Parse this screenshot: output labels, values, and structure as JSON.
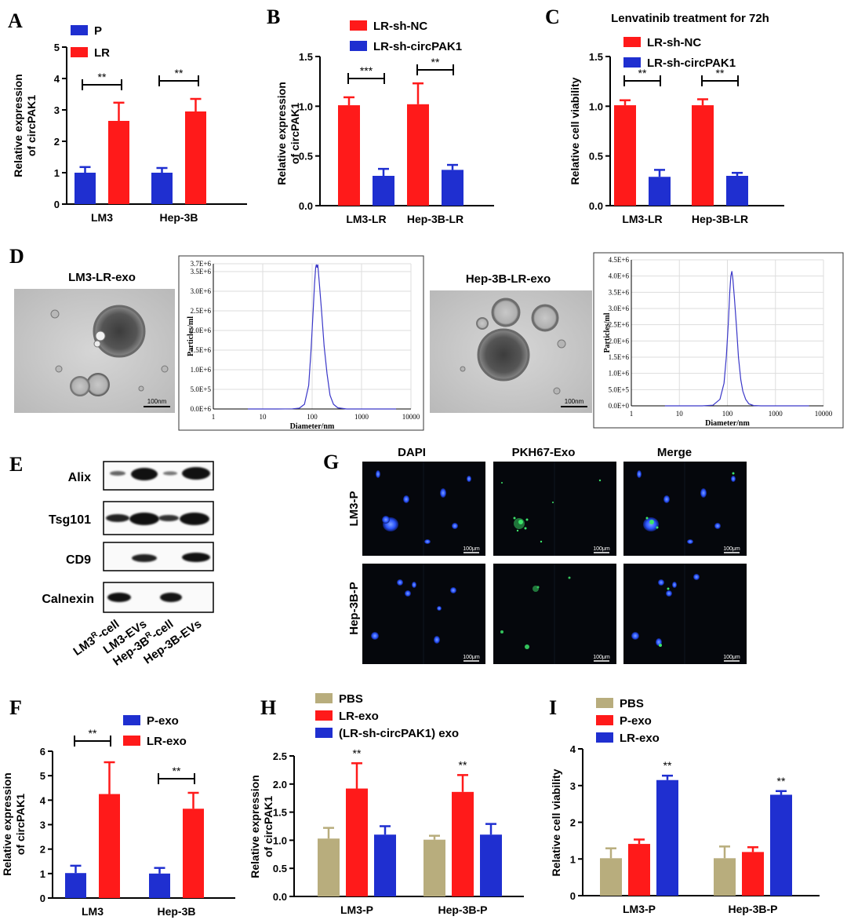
{
  "colors": {
    "p_blue": "#1f2fd0",
    "lr_red": "#ff1a1a",
    "pbs_khaki": "#b8ad7d",
    "nta_line": "#3a37c8",
    "axis": "#000000",
    "em_bg": "#c9c9c9",
    "fluor_bg": "#05070c",
    "dapi": "#2a55ff",
    "pkh": "#3ce36a"
  },
  "panels": {
    "A": "A",
    "B": "B",
    "C": "C",
    "D": "D",
    "E": "E",
    "F": "F",
    "G": "G",
    "H": "H",
    "I": "I"
  },
  "chart_data": [
    {
      "id": "A",
      "type": "bar",
      "ylabel": "Relative expression of circPAK1",
      "ylim": [
        0,
        5
      ],
      "yticks": [
        "0",
        "1",
        "2",
        "3",
        "4",
        "5"
      ],
      "categories": [
        "LM3",
        "Hep-3B"
      ],
      "series": [
        {
          "name": "P",
          "values": [
            1.0,
            1.0
          ],
          "errors": [
            0.18,
            0.15
          ]
        },
        {
          "name": "LR",
          "values": [
            2.65,
            2.95
          ],
          "errors": [
            0.58,
            0.4
          ]
        }
      ],
      "significance": [
        {
          "text": "**",
          "group": 0
        },
        {
          "text": "**",
          "group": 1
        }
      ]
    },
    {
      "id": "B",
      "type": "bar",
      "ylabel": "Relative expression of circPAK1",
      "ylim": [
        0,
        1.5
      ],
      "yticks": [
        "0.0",
        "0.5",
        "1.0",
        "1.5"
      ],
      "categories": [
        "LM3-LR",
        "Hep-3B-LR"
      ],
      "series": [
        {
          "name": "LR-sh-NC",
          "values": [
            1.01,
            1.02
          ],
          "errors": [
            0.08,
            0.21
          ]
        },
        {
          "name": "LR-sh-circPAK1",
          "values": [
            0.3,
            0.36
          ],
          "errors": [
            0.07,
            0.05
          ]
        }
      ],
      "significance": [
        {
          "text": "***",
          "group": 0
        },
        {
          "text": "**",
          "group": 1
        }
      ]
    },
    {
      "id": "C",
      "type": "bar",
      "title": "Lenvatinib treatment for 72h",
      "ylabel": "Relative cell viability",
      "ylim": [
        0,
        1.5
      ],
      "yticks": [
        "0.0",
        "0.5",
        "1.0",
        "1.5"
      ],
      "categories": [
        "LM3-LR",
        "Hep-3B-LR"
      ],
      "series": [
        {
          "name": "LR-sh-NC",
          "values": [
            1.01,
            1.01
          ],
          "errors": [
            0.05,
            0.06
          ]
        },
        {
          "name": "LR-sh-circPAK1",
          "values": [
            0.29,
            0.3
          ],
          "errors": [
            0.07,
            0.03
          ]
        }
      ],
      "significance": [
        {
          "text": "**",
          "group": 0
        },
        {
          "text": "**",
          "group": 1
        }
      ]
    },
    {
      "id": "D1",
      "type": "line",
      "xscale": "log",
      "xlim": [
        1,
        10000
      ],
      "xticks": [
        "1",
        "10",
        "100",
        "1000",
        "10000"
      ],
      "ylim": [
        0,
        3700000
      ],
      "yticks": [
        "0.0E+6",
        "5.0E+5",
        "1.0E+6",
        "1.5E+6",
        "2.0E+6",
        "2.5E+6",
        "3.0E+6",
        "3.5E+6",
        "3.7E+6"
      ],
      "xlabel": "Diameter/nm",
      "ylabel": "Particles/ml",
      "x": [
        5,
        20,
        40,
        55,
        70,
        85,
        95,
        105,
        112,
        118,
        122,
        126,
        130,
        140,
        155,
        175,
        200,
        230,
        270,
        330,
        500,
        1000,
        5000
      ],
      "y": [
        0,
        0,
        5000,
        20000,
        120000,
        600000,
        1500000,
        2500000,
        3200000,
        3600000,
        3680000,
        3600000,
        3680000,
        3200000,
        2500000,
        1600000,
        900000,
        350000,
        120000,
        30000,
        0,
        0,
        0
      ]
    },
    {
      "id": "D2",
      "type": "line",
      "xscale": "log",
      "xlim": [
        1,
        10000
      ],
      "xticks": [
        "1",
        "10",
        "100",
        "1000",
        "10000"
      ],
      "ylim": [
        0,
        4500000
      ],
      "yticks": [
        "0.0E+0",
        "5.0E+5",
        "1.0E+6",
        "1.5E+6",
        "2.0E+6",
        "2.5E+6",
        "3.0E+6",
        "3.5E+6",
        "4.0E+6",
        "4.5E+6"
      ],
      "xlabel": "Diameter/nm",
      "ylabel": "Particles/ml",
      "x": [
        5,
        30,
        50,
        70,
        85,
        95,
        105,
        112,
        118,
        124,
        130,
        140,
        155,
        170,
        190,
        210,
        240,
        280,
        350,
        500,
        1000,
        5000
      ],
      "y": [
        0,
        0,
        20000,
        200000,
        700000,
        1500000,
        2600000,
        3500000,
        4000000,
        4150000,
        3900000,
        3300000,
        2400000,
        1500000,
        800000,
        450000,
        200000,
        60000,
        10000,
        0,
        0,
        0
      ]
    },
    {
      "id": "F",
      "type": "bar",
      "ylabel": "Relative expression of circPAK1",
      "ylim": [
        0,
        6
      ],
      "yticks": [
        "0",
        "1",
        "2",
        "3",
        "4",
        "5",
        "6"
      ],
      "categories": [
        "LM3",
        "Hep-3B"
      ],
      "series": [
        {
          "name": "P-exo",
          "values": [
            1.02,
            1.0
          ],
          "errors": [
            0.3,
            0.23
          ]
        },
        {
          "name": "LR-exo",
          "values": [
            4.25,
            3.65
          ],
          "errors": [
            1.3,
            0.65
          ]
        }
      ],
      "significance": [
        {
          "text": "**",
          "group": 0
        },
        {
          "text": "**",
          "group": 1
        }
      ]
    },
    {
      "id": "H",
      "type": "bar",
      "ylabel": "Relative expression of circPAK1",
      "ylim": [
        0,
        2.5
      ],
      "yticks": [
        "0.0",
        "0.5",
        "1.0",
        "1.5",
        "2.0",
        "2.5"
      ],
      "categories": [
        "LM3-P",
        "Hep-3B-P"
      ],
      "series": [
        {
          "name": "PBS",
          "values": [
            1.03,
            1.01
          ],
          "errors": [
            0.19,
            0.07
          ]
        },
        {
          "name": "LR-exo",
          "values": [
            1.92,
            1.86
          ],
          "errors": [
            0.45,
            0.3
          ]
        },
        {
          "name": "(LR-sh-circPAK1) exo",
          "values": [
            1.1,
            1.1
          ],
          "errors": [
            0.15,
            0.19
          ]
        }
      ],
      "significance": [
        {
          "text": "**",
          "group": 0,
          "series": 1
        },
        {
          "text": "**",
          "group": 1,
          "series": 1
        }
      ]
    },
    {
      "id": "I",
      "type": "bar",
      "ylabel": "Relative cell viability",
      "ylim": [
        0,
        4
      ],
      "yticks": [
        "0",
        "1",
        "2",
        "3",
        "4"
      ],
      "categories": [
        "LM3-P",
        "Hep-3B-P"
      ],
      "series": [
        {
          "name": "PBS",
          "values": [
            1.02,
            1.02
          ],
          "errors": [
            0.27,
            0.32
          ]
        },
        {
          "name": "P-exo",
          "values": [
            1.41,
            1.19
          ],
          "errors": [
            0.12,
            0.13
          ]
        },
        {
          "name": "LR-exo",
          "values": [
            3.15,
            2.75
          ],
          "errors": [
            0.12,
            0.1
          ]
        }
      ],
      "significance": [
        {
          "text": "**",
          "group": 0,
          "series": 2
        },
        {
          "text": "**",
          "group": 1,
          "series": 2
        }
      ]
    }
  ],
  "panelD": {
    "left_label": "LM3-LR-exo",
    "right_label": "Hep-3B-LR-exo",
    "scale_bar": "100nm"
  },
  "panelE": {
    "rows": [
      "Alix",
      "Tsg101",
      "CD9",
      "Calnexin"
    ],
    "lanes": [
      "LM3R-cell",
      "LM3-EVs",
      "Hep-3BR-cell",
      "Hep-3B-EVs"
    ],
    "lane_labels": [
      {
        "pre": "LM3",
        "sup": "R",
        "post": "-cell"
      },
      {
        "pre": "LM3-EVs",
        "sup": "",
        "post": ""
      },
      {
        "pre": "Hep-3B",
        "sup": "R",
        "post": "-cell"
      },
      {
        "pre": "Hep-3B-EVs",
        "sup": "",
        "post": ""
      }
    ]
  },
  "panelG": {
    "columns": [
      "DAPI",
      "PKH67-Exo",
      "Merge"
    ],
    "rows": [
      "LM3-P",
      "Hep-3B-P"
    ],
    "scale_bar": "100μm"
  }
}
